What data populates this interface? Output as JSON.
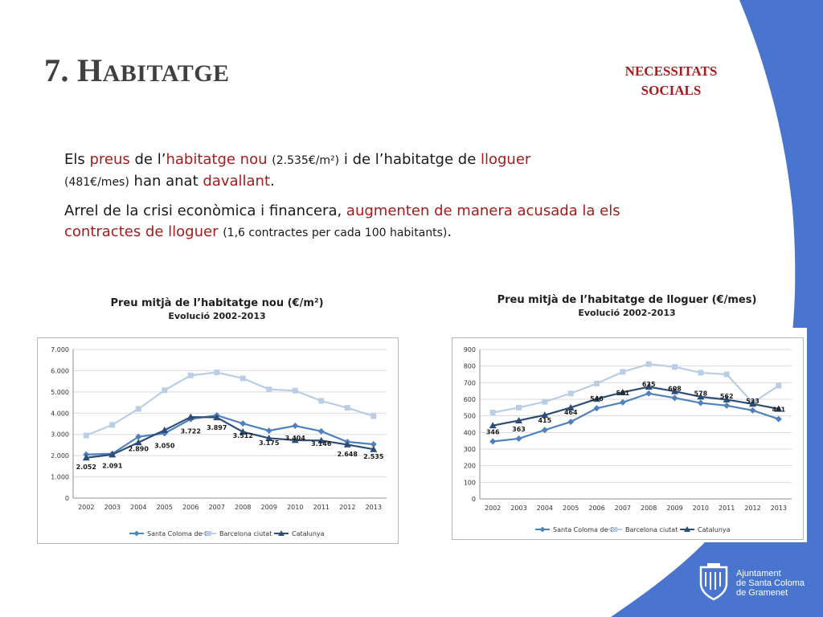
{
  "slide": {
    "title_number": "7.",
    "title_cap": "H",
    "title_rest": "ABITATGE",
    "section_line1": "NECESSITATS",
    "section_line2": "SOCIALS"
  },
  "paragraphs": {
    "p1": {
      "s1": "Els ",
      "s2": "preus",
      "s3": " de l’",
      "s4": "habitatge nou",
      "s5": " ",
      "s6": "(2.535€/m²)",
      "s7": " i de l’habitatge de ",
      "s8": "lloguer",
      "s9": "(481€/mes)",
      "s10": " han anat ",
      "s11": "davallant",
      "s12": "."
    },
    "p2": {
      "s1": "Arrel de la crisi econòmica i financera, ",
      "s2": "augmenten de manera acusada la els contractes de lloguer",
      "s3": " ",
      "s4": "(1,6 contractes per cada 100 habitants)",
      "s5": "."
    }
  },
  "logo": {
    "line1": "Ajuntament",
    "line2": "de Santa Coloma",
    "line3": "de Gramenet"
  },
  "colors": {
    "accent_red": "#a41c1c",
    "wave_blue": "#4a75cf",
    "series_santa_coloma": "#4f81bd",
    "series_barcelona": "#b9cde5",
    "series_catalunya": "#2c4d75"
  },
  "chart_data": [
    {
      "type": "line",
      "title": "Preu mitjà de l’habitatge nou (€/m²)",
      "subtitle": "Evolució 2002-2013",
      "x": [
        "2002",
        "2003",
        "2004",
        "2005",
        "2006",
        "2007",
        "2008",
        "2009",
        "2010",
        "2011",
        "2012",
        "2013"
      ],
      "ylim": [
        0,
        7000
      ],
      "yticks": [
        0,
        1000,
        2000,
        3000,
        4000,
        5000,
        6000,
        7000
      ],
      "ytick_labels": [
        "0",
        "1.000",
        "2.000",
        "3.000",
        "4.000",
        "5.000",
        "6.000",
        "7.000"
      ],
      "grid": true,
      "legend": "bottom",
      "series": [
        {
          "name": "Santa Coloma de G.",
          "marker": "diamond",
          "values": [
            2052,
            2091,
            2890,
            3050,
            3722,
            3897,
            3512,
            3175,
            3404,
            3146,
            2648,
            2535
          ]
        },
        {
          "name": "Barcelona ciutat",
          "marker": "square",
          "values": [
            2950,
            3450,
            4200,
            5080,
            5780,
            5920,
            5640,
            5120,
            5060,
            4580,
            4250,
            3860
          ]
        },
        {
          "name": "Catalunya",
          "marker": "triangle",
          "values": [
            1900,
            2050,
            2620,
            3200,
            3820,
            3800,
            3120,
            2820,
            2730,
            2710,
            2520,
            2300
          ]
        }
      ],
      "data_labels": [
        {
          "series": 0,
          "index": 0,
          "text": "2.052"
        },
        {
          "series": 0,
          "index": 1,
          "text": "2.091"
        },
        {
          "series": 0,
          "index": 2,
          "text": "2.890"
        },
        {
          "series": 0,
          "index": 3,
          "text": "3.050"
        },
        {
          "series": 0,
          "index": 4,
          "text": "3.722"
        },
        {
          "series": 0,
          "index": 5,
          "text": "3.897"
        },
        {
          "series": 0,
          "index": 6,
          "text": "3.512"
        },
        {
          "series": 0,
          "index": 7,
          "text": "3.175"
        },
        {
          "series": 0,
          "index": 8,
          "text": "3.404"
        },
        {
          "series": 0,
          "index": 9,
          "text": "3.146"
        },
        {
          "series": 0,
          "index": 10,
          "text": "2.648"
        },
        {
          "series": 0,
          "index": 11,
          "text": "2.535"
        }
      ]
    },
    {
      "type": "line",
      "title": "Preu mitjà de l’habitatge de lloguer (€/mes)",
      "subtitle": "Evolució 2002-2013",
      "x": [
        "2002",
        "2003",
        "2004",
        "2005",
        "2006",
        "2007",
        "2008",
        "2009",
        "2010",
        "2011",
        "2012",
        "2013"
      ],
      "ylim": [
        0,
        900
      ],
      "yticks": [
        0,
        100,
        200,
        300,
        400,
        500,
        600,
        700,
        800,
        900
      ],
      "ytick_labels": [
        "0",
        "100",
        "200",
        "300",
        "400",
        "500",
        "600",
        "700",
        "800",
        "900"
      ],
      "grid": true,
      "legend": "bottom",
      "series": [
        {
          "name": "Santa Coloma de G.",
          "marker": "diamond",
          "values": [
            346,
            363,
            415,
            464,
            546,
            581,
            635,
            608,
            578,
            562,
            533,
            481
          ]
        },
        {
          "name": "Barcelona ciutat",
          "marker": "square",
          "values": [
            520,
            550,
            585,
            635,
            695,
            765,
            812,
            795,
            760,
            750,
            580,
            682
          ]
        },
        {
          "name": "Catalunya",
          "marker": "triangle",
          "values": [
            442,
            472,
            505,
            550,
            602,
            642,
            675,
            648,
            615,
            598,
            572,
            542
          ]
        }
      ],
      "data_labels": [
        {
          "series": 0,
          "index": 0,
          "text": "346"
        },
        {
          "series": 0,
          "index": 1,
          "text": "363"
        },
        {
          "series": 0,
          "index": 2,
          "text": "415"
        },
        {
          "series": 0,
          "index": 3,
          "text": "464"
        },
        {
          "series": 0,
          "index": 4,
          "text": "546"
        },
        {
          "series": 0,
          "index": 5,
          "text": "581"
        },
        {
          "series": 0,
          "index": 6,
          "text": "635"
        },
        {
          "series": 0,
          "index": 7,
          "text": "608"
        },
        {
          "series": 0,
          "index": 8,
          "text": "578"
        },
        {
          "series": 0,
          "index": 9,
          "text": "562"
        },
        {
          "series": 0,
          "index": 10,
          "text": "533"
        },
        {
          "series": 0,
          "index": 11,
          "text": "481"
        }
      ]
    }
  ]
}
